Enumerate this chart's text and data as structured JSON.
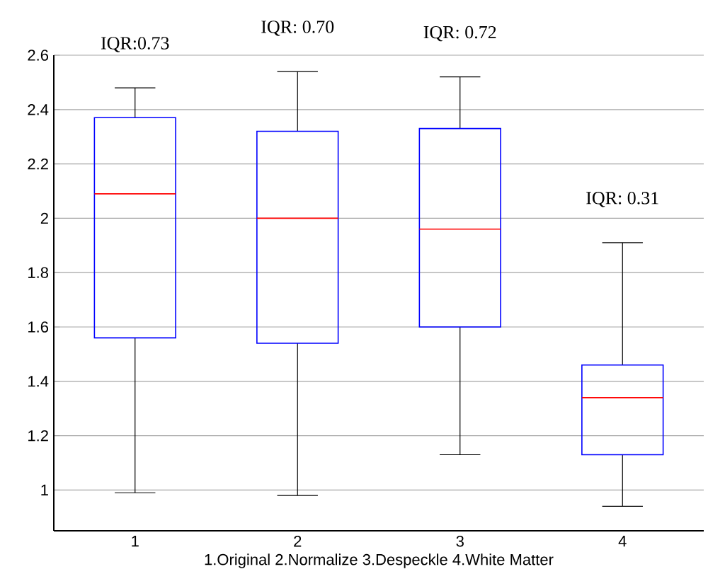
{
  "chart_data": {
    "type": "box",
    "categories": [
      "1",
      "2",
      "3",
      "4"
    ],
    "xlabel": "1.Original 2.Normalize 3.Despeckle 4.White Matter",
    "color": "#0000ff",
    "boxes": [
      {
        "low": 0.99,
        "q1": 1.56,
        "median": 2.09,
        "q3": 2.37,
        "high": 2.48
      },
      {
        "low": 0.98,
        "q1": 1.54,
        "median": 2.0,
        "q3": 2.32,
        "high": 2.54
      },
      {
        "low": 1.13,
        "q1": 1.6,
        "median": 1.96,
        "q3": 2.33,
        "high": 2.52
      },
      {
        "low": 0.94,
        "q1": 1.13,
        "median": 1.34,
        "q3": 1.46,
        "high": 1.91
      }
    ],
    "annotations": [
      "IQR:0.73",
      "IQR:  0.70",
      "IQR:  0.72",
      "IQR:  0.31"
    ],
    "ylim": [
      0.85,
      2.6
    ],
    "yticks": [
      1,
      1.2,
      1.4,
      1.6,
      1.8,
      2,
      2.2,
      2.4,
      2.6
    ],
    "grid": "y"
  }
}
